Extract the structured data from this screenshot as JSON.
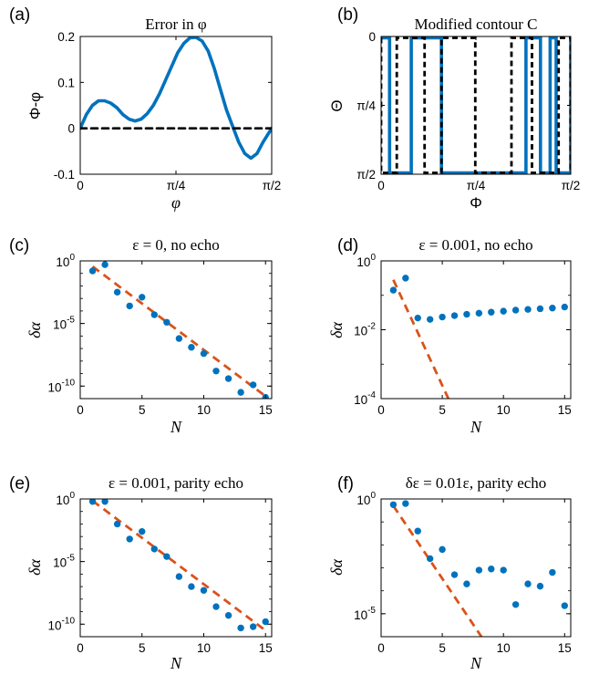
{
  "chart_data": [
    {
      "panel": "(a)",
      "type": "line",
      "title": "Error in φ",
      "xlabel": "φ",
      "ylabel": "Φ-φ",
      "xlim": [
        0,
        1.5708
      ],
      "ylim": [
        -0.1,
        0.2
      ],
      "xticks": [
        {
          "v": 0,
          "label": "0"
        },
        {
          "v": 0.7854,
          "label": "π/4"
        },
        {
          "v": 1.5708,
          "label": "π/2"
        }
      ],
      "yticks": [
        {
          "v": 0.2,
          "label": "0.2"
        },
        {
          "v": 0.1,
          "label": "0.1"
        },
        {
          "v": 0,
          "label": "0"
        },
        {
          "v": -0.1,
          "label": "-0.1"
        }
      ],
      "series": [
        {
          "kind": "curve",
          "color": "#0072BD",
          "x": [
            0,
            0.05,
            0.1,
            0.15,
            0.2,
            0.25,
            0.3,
            0.35,
            0.4,
            0.45,
            0.5,
            0.55,
            0.6,
            0.65,
            0.7,
            0.75,
            0.8,
            0.85,
            0.9,
            0.95,
            1.0,
            1.05,
            1.1,
            1.15,
            1.2,
            1.25,
            1.3,
            1.35,
            1.4,
            1.45,
            1.5,
            1.5708
          ],
          "y": [
            0,
            0.03,
            0.05,
            0.06,
            0.06,
            0.055,
            0.045,
            0.03,
            0.02,
            0.016,
            0.02,
            0.032,
            0.05,
            0.075,
            0.105,
            0.135,
            0.165,
            0.185,
            0.197,
            0.198,
            0.19,
            0.168,
            0.13,
            0.085,
            0.04,
            0.005,
            -0.03,
            -0.055,
            -0.065,
            -0.055,
            -0.03,
            0
          ]
        },
        {
          "kind": "dashed",
          "color": "#000000",
          "x": [
            0,
            1.5708
          ],
          "y": [
            0,
            0
          ]
        }
      ]
    },
    {
      "panel": "(b)",
      "type": "line",
      "title": "Modified contour C",
      "xlabel": "Φ",
      "ylabel": "Θ",
      "xlim": [
        0,
        1.5708
      ],
      "ylim": [
        0,
        1.5708
      ],
      "y_reversed": true,
      "xticks": [
        {
          "v": 0,
          "label": "0"
        },
        {
          "v": 0.7854,
          "label": "π/4"
        },
        {
          "v": 1.5708,
          "label": "π/2"
        }
      ],
      "yticks": [
        {
          "v": 0,
          "label": "0"
        },
        {
          "v": 0.7854,
          "label": "π/4"
        },
        {
          "v": 1.5708,
          "label": "π/2"
        }
      ],
      "series": [
        {
          "kind": "contour",
          "color": "#0072BD",
          "switch_x": [
            0.07,
            0.25,
            0.5,
            1.2,
            1.32,
            1.4,
            1.45,
            1.5708
          ]
        },
        {
          "kind": "contour-dashed",
          "color": "#000000",
          "switch_x": [
            0,
            0.13,
            0.36,
            0.5,
            0.78,
            1.08,
            1.25,
            1.47,
            1.5708
          ]
        }
      ]
    },
    {
      "panel": "(c)",
      "type": "scatter",
      "title": "ε = 0, no echo",
      "xlabel": "N",
      "ylabel": "δα",
      "xlim": [
        0,
        15.5
      ],
      "ylog": true,
      "ylim_exp": [
        -11,
        0
      ],
      "xticks": [
        {
          "v": 0,
          "label": "0"
        },
        {
          "v": 5,
          "label": "5"
        },
        {
          "v": 10,
          "label": "10"
        },
        {
          "v": 15,
          "label": "15"
        }
      ],
      "yticks": [
        {
          "e": 0,
          "base": "10",
          "exp": "0"
        },
        {
          "e": -5,
          "base": "10",
          "exp": "-5"
        },
        {
          "e": -10,
          "base": "10",
          "exp": "-10"
        }
      ],
      "points": {
        "x": [
          1,
          2,
          3,
          4,
          5,
          6,
          7,
          8,
          9,
          10,
          11,
          12,
          13,
          14,
          15
        ],
        "log10y": [
          -0.8,
          -0.3,
          -2.5,
          -3.6,
          -2.9,
          -4.3,
          -4.9,
          -6.2,
          -6.9,
          -7.4,
          -8.8,
          -9.4,
          -10.5,
          -9.9,
          -10.9
        ]
      },
      "fit": {
        "x": [
          1,
          15
        ],
        "log10y": [
          -0.45,
          -10.8
        ]
      },
      "colors": {
        "points": "#0072BD",
        "fit": "#D95319"
      }
    },
    {
      "panel": "(d)",
      "type": "scatter",
      "title": "ε = 0.001, no echo",
      "xlabel": "N",
      "ylabel": "δα",
      "xlim": [
        0,
        15.5
      ],
      "ylog": true,
      "ylim_exp": [
        -4,
        0
      ],
      "xticks": [
        {
          "v": 0,
          "label": "0"
        },
        {
          "v": 5,
          "label": "5"
        },
        {
          "v": 10,
          "label": "10"
        },
        {
          "v": 15,
          "label": "15"
        }
      ],
      "yticks": [
        {
          "e": 0,
          "base": "10",
          "exp": "0"
        },
        {
          "e": -2,
          "base": "10",
          "exp": "-2"
        },
        {
          "e": -4,
          "base": "10",
          "exp": "-4"
        }
      ],
      "points": {
        "x": [
          1,
          2,
          3,
          4,
          5,
          6,
          7,
          8,
          9,
          10,
          11,
          12,
          13,
          14,
          15
        ],
        "log10y": [
          -0.85,
          -0.5,
          -1.66,
          -1.7,
          -1.63,
          -1.59,
          -1.55,
          -1.52,
          -1.49,
          -1.46,
          -1.43,
          -1.41,
          -1.39,
          -1.37,
          -1.34
        ]
      },
      "fit": {
        "x": [
          1,
          5.5
        ],
        "log10y": [
          -0.55,
          -4.0
        ]
      },
      "colors": {
        "points": "#0072BD",
        "fit": "#D95319"
      }
    },
    {
      "panel": "(e)",
      "type": "scatter",
      "title": "ε = 0.001, parity echo",
      "xlabel": "N",
      "ylabel": "δα",
      "xlim": [
        0,
        15.5
      ],
      "ylog": true,
      "ylim_exp": [
        -11,
        0
      ],
      "xticks": [
        {
          "v": 0,
          "label": "0"
        },
        {
          "v": 5,
          "label": "5"
        },
        {
          "v": 10,
          "label": "10"
        },
        {
          "v": 15,
          "label": "15"
        }
      ],
      "yticks": [
        {
          "e": 0,
          "base": "10",
          "exp": "0"
        },
        {
          "e": -5,
          "base": "10",
          "exp": "-5"
        },
        {
          "e": -10,
          "base": "10",
          "exp": "-10"
        }
      ],
      "points": {
        "x": [
          1,
          2,
          3,
          4,
          5,
          6,
          7,
          8,
          9,
          10,
          11,
          12,
          13,
          14,
          15
        ],
        "log10y": [
          -0.2,
          -0.2,
          -2.0,
          -3.2,
          -2.6,
          -4.0,
          -4.6,
          -6.2,
          -7.0,
          -7.3,
          -8.6,
          -9.3,
          -10.3,
          -10.2,
          -9.8
        ]
      },
      "fit": {
        "x": [
          1,
          15
        ],
        "log10y": [
          -0.15,
          -10.5
        ]
      },
      "colors": {
        "points": "#0072BD",
        "fit": "#D95319"
      }
    },
    {
      "panel": "(f)",
      "type": "scatter",
      "title": "δε = 0.01ε, parity echo",
      "xlabel": "N",
      "ylabel": "δα",
      "xlim": [
        0,
        15.5
      ],
      "ylog": true,
      "ylim_exp": [
        -6,
        0
      ],
      "xticks": [
        {
          "v": 0,
          "label": "0"
        },
        {
          "v": 5,
          "label": "5"
        },
        {
          "v": 10,
          "label": "10"
        },
        {
          "v": 15,
          "label": "15"
        }
      ],
      "yticks": [
        {
          "e": 0,
          "base": "10",
          "exp": "0"
        },
        {
          "e": -5,
          "base": "10",
          "exp": "-5"
        }
      ],
      "points": {
        "x": [
          1,
          2,
          3,
          4,
          5,
          6,
          7,
          8,
          9,
          10,
          11,
          12,
          13,
          14,
          15
        ],
        "log10y": [
          -0.25,
          -0.2,
          -1.4,
          -2.6,
          -2.2,
          -3.3,
          -3.7,
          -3.1,
          -3.05,
          -3.1,
          -4.6,
          -3.7,
          -3.8,
          -3.2,
          -4.65
        ]
      },
      "fit": {
        "x": [
          1,
          8.2
        ],
        "log10y": [
          -0.3,
          -6.0
        ]
      },
      "colors": {
        "points": "#0072BD",
        "fit": "#D95319"
      }
    }
  ]
}
